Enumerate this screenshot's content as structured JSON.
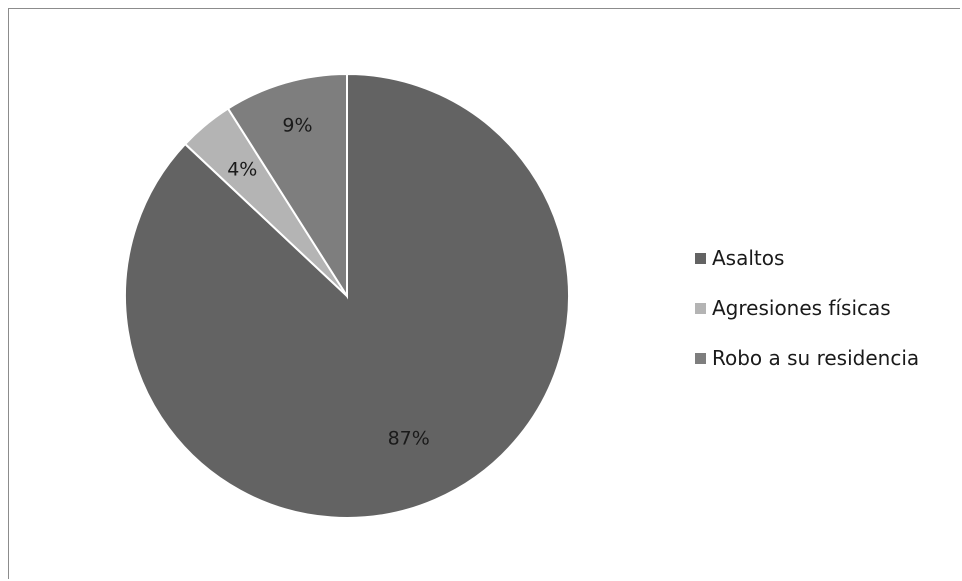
{
  "chart_data": {
    "type": "pie",
    "categories": [
      "Asaltos",
      "Agresiones físicas",
      "Robo a su residencia"
    ],
    "values": [
      87,
      4,
      9
    ],
    "labels": [
      "87%",
      "4%",
      "9%"
    ],
    "colors": [
      "#636363",
      "#b4b4b4",
      "#7e7e7e"
    ],
    "title": "",
    "legend": "right"
  }
}
